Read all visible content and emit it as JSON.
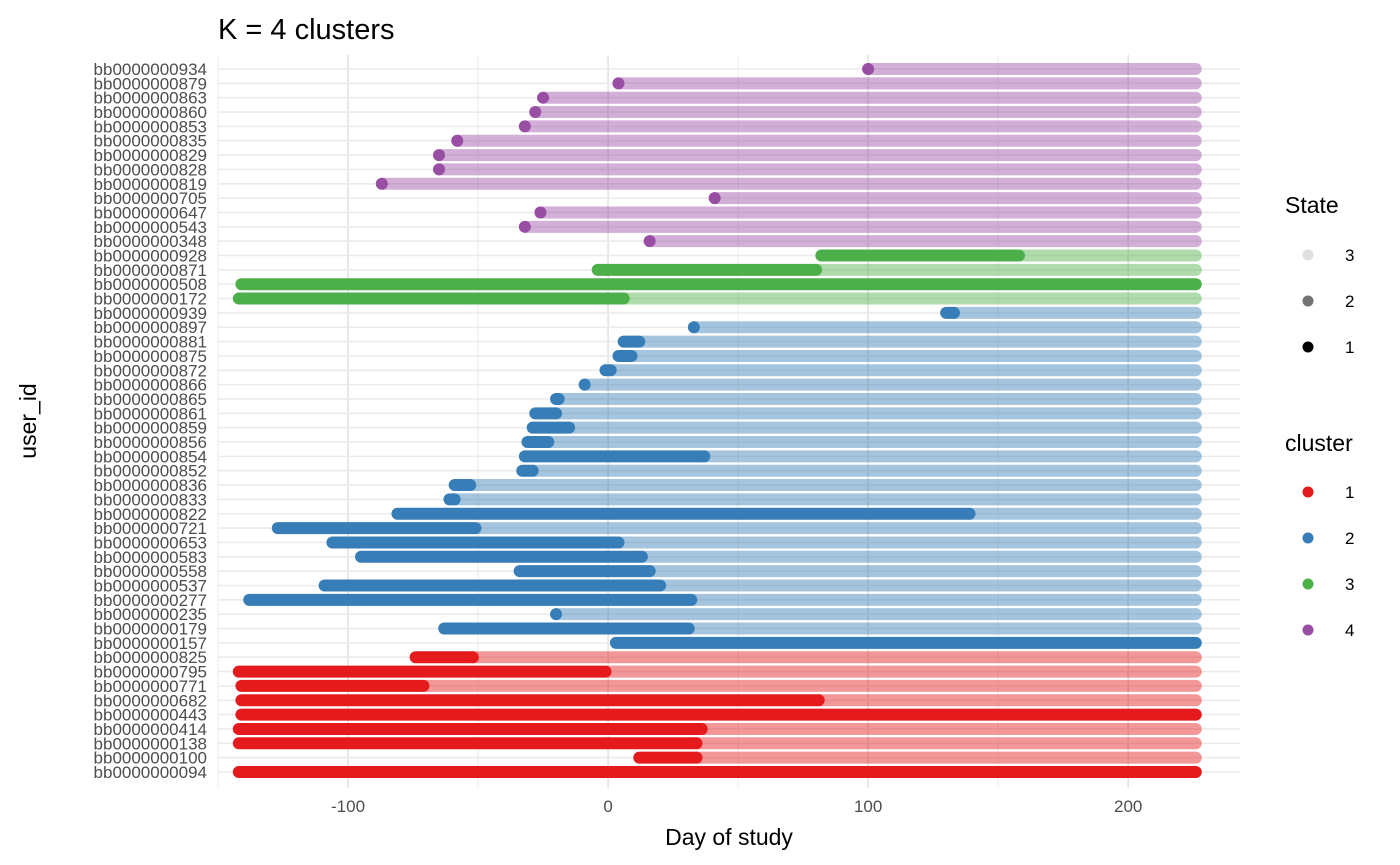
{
  "chart_data": {
    "type": "timeline",
    "title": "K = 4 clusters",
    "xlabel": "Day of study",
    "ylabel": "user_id",
    "xlim": [
      -150,
      243
    ],
    "x_ticks": [
      -100,
      0,
      100,
      200
    ],
    "x_tick_labels": [
      "-100",
      "0",
      "100",
      "200"
    ],
    "grid": true,
    "x_end": 226,
    "legend_state": {
      "title": "State",
      "items": [
        {
          "label": "3",
          "alpha": 0.12
        },
        {
          "label": "2",
          "alpha": 0.55
        },
        {
          "label": "1",
          "alpha": 1.0
        }
      ]
    },
    "legend_cluster": {
      "title": "cluster",
      "items": [
        {
          "label": "1",
          "color": "#E41A1C"
        },
        {
          "label": "2",
          "color": "#377EB8"
        },
        {
          "label": "3",
          "color": "#4DAF4A"
        },
        {
          "label": "4",
          "color": "#984EA3"
        }
      ]
    },
    "cluster_colors": {
      "1": "#E41A1C",
      "2": "#377EB8",
      "3": "#4DAF4A",
      "4": "#984EA3"
    },
    "rows": [
      {
        "user_id": "bb0000000934",
        "cluster": 4,
        "start": 100,
        "s1_end": 100,
        "s2_end": 100
      },
      {
        "user_id": "bb0000000879",
        "cluster": 4,
        "start": 4,
        "s1_end": 4,
        "s2_end": 4
      },
      {
        "user_id": "bb0000000863",
        "cluster": 4,
        "start": -25,
        "s1_end": -25,
        "s2_end": -25
      },
      {
        "user_id": "bb0000000860",
        "cluster": 4,
        "start": -28,
        "s1_end": -28,
        "s2_end": -28
      },
      {
        "user_id": "bb0000000853",
        "cluster": 4,
        "start": -32,
        "s1_end": -32,
        "s2_end": -32
      },
      {
        "user_id": "bb0000000835",
        "cluster": 4,
        "start": -58,
        "s1_end": -58,
        "s2_end": -58
      },
      {
        "user_id": "bb0000000829",
        "cluster": 4,
        "start": -65,
        "s1_end": -65,
        "s2_end": -65
      },
      {
        "user_id": "bb0000000828",
        "cluster": 4,
        "start": -65,
        "s1_end": -65,
        "s2_end": -65
      },
      {
        "user_id": "bb0000000819",
        "cluster": 4,
        "start": -87,
        "s1_end": -87,
        "s2_end": -87
      },
      {
        "user_id": "bb0000000705",
        "cluster": 4,
        "start": 41,
        "s1_end": 41,
        "s2_end": 41
      },
      {
        "user_id": "bb0000000647",
        "cluster": 4,
        "start": -26,
        "s1_end": -26,
        "s2_end": -26
      },
      {
        "user_id": "bb0000000543",
        "cluster": 4,
        "start": -32,
        "s1_end": -32,
        "s2_end": -32
      },
      {
        "user_id": "bb0000000348",
        "cluster": 4,
        "start": 16,
        "s1_end": 16,
        "s2_end": 16
      },
      {
        "user_id": "bb0000000928",
        "cluster": 3,
        "start": 82,
        "s1_end": 158,
        "s2_end": 158
      },
      {
        "user_id": "bb0000000871",
        "cluster": 3,
        "start": -4,
        "s1_end": 80,
        "s2_end": 80
      },
      {
        "user_id": "bb0000000508",
        "cluster": 3,
        "start": -141,
        "s1_end": 226,
        "s2_end": 226
      },
      {
        "user_id": "bb0000000172",
        "cluster": 3,
        "start": -142,
        "s1_end": 6,
        "s2_end": 6
      },
      {
        "user_id": "bb0000000939",
        "cluster": 2,
        "start": 130,
        "s1_end": 133,
        "s2_end": 133
      },
      {
        "user_id": "bb0000000897",
        "cluster": 2,
        "start": 33,
        "s1_end": 33,
        "s2_end": 33
      },
      {
        "user_id": "bb0000000881",
        "cluster": 2,
        "start": 6,
        "s1_end": 12,
        "s2_end": 12
      },
      {
        "user_id": "bb0000000875",
        "cluster": 2,
        "start": 4,
        "s1_end": 9,
        "s2_end": 9
      },
      {
        "user_id": "bb0000000872",
        "cluster": 2,
        "start": -1,
        "s1_end": 1,
        "s2_end": 1
      },
      {
        "user_id": "bb0000000866",
        "cluster": 2,
        "start": -9,
        "s1_end": -9,
        "s2_end": -9
      },
      {
        "user_id": "bb0000000865",
        "cluster": 2,
        "start": -20,
        "s1_end": -19,
        "s2_end": -19
      },
      {
        "user_id": "bb0000000861",
        "cluster": 2,
        "start": -28,
        "s1_end": -20,
        "s2_end": -20
      },
      {
        "user_id": "bb0000000859",
        "cluster": 2,
        "start": -29,
        "s1_end": -15,
        "s2_end": -15
      },
      {
        "user_id": "bb0000000856",
        "cluster": 2,
        "start": -31,
        "s1_end": -23,
        "s2_end": -23
      },
      {
        "user_id": "bb0000000854",
        "cluster": 2,
        "start": -32,
        "s1_end": 37,
        "s2_end": 37
      },
      {
        "user_id": "bb0000000852",
        "cluster": 2,
        "start": -33,
        "s1_end": -29,
        "s2_end": -29
      },
      {
        "user_id": "bb0000000836",
        "cluster": 2,
        "start": -59,
        "s1_end": -53,
        "s2_end": -53
      },
      {
        "user_id": "bb0000000833",
        "cluster": 2,
        "start": -61,
        "s1_end": -59,
        "s2_end": -59
      },
      {
        "user_id": "bb0000000822",
        "cluster": 2,
        "start": -81,
        "s1_end": 139,
        "s2_end": 139
      },
      {
        "user_id": "bb0000000721",
        "cluster": 2,
        "start": -127,
        "s1_end": -51,
        "s2_end": -51
      },
      {
        "user_id": "bb0000000653",
        "cluster": 2,
        "start": -106,
        "s1_end": 4,
        "s2_end": 4
      },
      {
        "user_id": "bb0000000583",
        "cluster": 2,
        "start": -95,
        "s1_end": 13,
        "s2_end": 13
      },
      {
        "user_id": "bb0000000558",
        "cluster": 2,
        "start": -34,
        "s1_end": 16,
        "s2_end": 16
      },
      {
        "user_id": "bb0000000537",
        "cluster": 2,
        "start": -109,
        "s1_end": 20,
        "s2_end": 20
      },
      {
        "user_id": "bb0000000277",
        "cluster": 2,
        "start": -138,
        "s1_end": 32,
        "s2_end": 32
      },
      {
        "user_id": "bb0000000235",
        "cluster": 2,
        "start": -20,
        "s1_end": -20,
        "s2_end": -20
      },
      {
        "user_id": "bb0000000179",
        "cluster": 2,
        "start": -63,
        "s1_end": 31,
        "s2_end": 31
      },
      {
        "user_id": "bb0000000157",
        "cluster": 2,
        "start": 3,
        "s1_end": 226,
        "s2_end": 226
      },
      {
        "user_id": "bb0000000825",
        "cluster": 1,
        "start": -74,
        "s1_end": -52,
        "s2_end": -52
      },
      {
        "user_id": "bb0000000795",
        "cluster": 1,
        "start": -142,
        "s1_end": -1,
        "s2_end": -1
      },
      {
        "user_id": "bb0000000771",
        "cluster": 1,
        "start": -141,
        "s1_end": -71,
        "s2_end": -71
      },
      {
        "user_id": "bb0000000682",
        "cluster": 1,
        "start": -141,
        "s1_end": 81,
        "s2_end": 81
      },
      {
        "user_id": "bb0000000443",
        "cluster": 1,
        "start": -141,
        "s1_end": 226,
        "s2_end": 226
      },
      {
        "user_id": "bb0000000414",
        "cluster": 1,
        "start": -142,
        "s1_end": 36,
        "s2_end": 36
      },
      {
        "user_id": "bb0000000138",
        "cluster": 1,
        "start": -142,
        "s1_end": 34,
        "s2_end": 34
      },
      {
        "user_id": "bb0000000100",
        "cluster": 1,
        "start": 12,
        "s1_end": 34,
        "s2_end": 34
      },
      {
        "user_id": "bb0000000094",
        "cluster": 1,
        "start": -142,
        "s1_end": 226,
        "s2_end": 226
      }
    ]
  }
}
